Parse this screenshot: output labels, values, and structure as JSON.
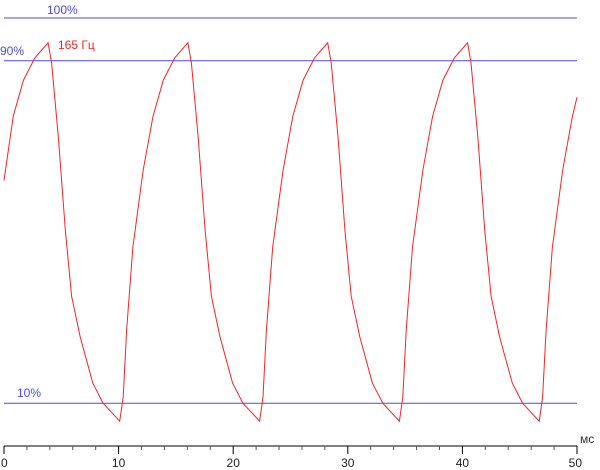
{
  "chart_data": {
    "type": "line",
    "xlabel": "мс",
    "ylabel": "",
    "xlim": [
      0,
      50
    ],
    "ylim": [
      0,
      100
    ],
    "x_ticks": [
      "0",
      "10",
      "20",
      "30",
      "40",
      "50"
    ],
    "x_minor_tick_step": 2,
    "grid": false,
    "reference_lines": [
      {
        "label": "100%",
        "value": 100
      },
      {
        "label": "90%",
        "value": 90
      },
      {
        "label": "10%",
        "value": 10
      }
    ],
    "annotation": "165 Гц",
    "colors": {
      "curve": "#ff2020",
      "reference": "#4a4af0",
      "axis": "#000000"
    },
    "series": [
      {
        "x": [
          0,
          0.8,
          1.7,
          2.7,
          3.85,
          4.15,
          4.75,
          5.35,
          5.9,
          6.65,
          7.75,
          8.65,
          10.1,
          10.4,
          10.7,
          11.25,
          12.15,
          13.0,
          13.9,
          14.9,
          16.05,
          16.35,
          16.95,
          17.55,
          18.1,
          18.85,
          19.95,
          20.85,
          22.3,
          22.6,
          22.9,
          23.45,
          24.35,
          25.2,
          26.1,
          27.1,
          28.25,
          28.55,
          29.15,
          29.75,
          30.3,
          31.05,
          32.15,
          33.05,
          34.5,
          34.8,
          35.1,
          35.65,
          36.55,
          37.4,
          38.3,
          39.3,
          40.45,
          40.75,
          41.35,
          41.95,
          42.5,
          43.25,
          44.35,
          45.25,
          46.7,
          47.0,
          47.3,
          47.85,
          48.75,
          49.6,
          50.0
        ],
        "y": [
          62,
          77,
          85.5,
          90.7,
          94.2,
          89.5,
          72,
          50.5,
          35,
          25.5,
          14.7,
          10,
          5.8,
          11.4,
          27,
          46.5,
          64.5,
          77,
          85.5,
          90.7,
          94.2,
          89.5,
          72,
          50.5,
          35,
          25.5,
          14.7,
          10,
          5.8,
          11.4,
          27,
          46.5,
          64.5,
          77,
          85.5,
          90.7,
          94.2,
          89.5,
          72,
          50.5,
          35,
          25.5,
          14.7,
          10,
          5.8,
          11.4,
          27,
          46.5,
          64.5,
          77,
          85.5,
          90.7,
          94.2,
          89.5,
          72,
          50.5,
          35,
          25.5,
          14.7,
          10,
          5.8,
          11.4,
          27,
          46.5,
          64.5,
          77,
          81.5
        ]
      }
    ]
  }
}
